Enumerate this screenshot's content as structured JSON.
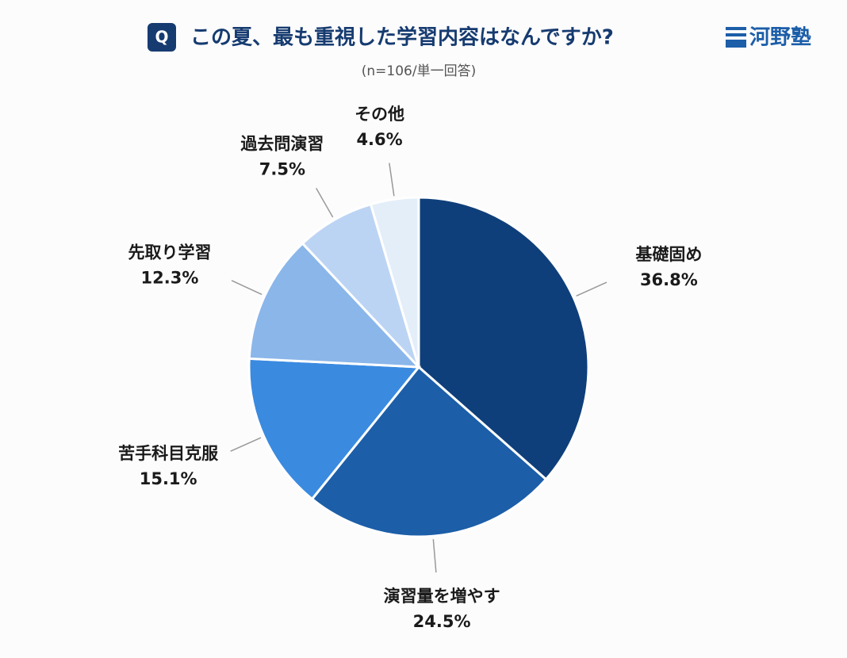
{
  "header": {
    "badge": "Q",
    "title": "この夏、最も重視した学習内容はなんですか?",
    "logo": "河野塾"
  },
  "chart_data": {
    "type": "pie",
    "subtitle": "(n=106/単一回答)",
    "categories": [
      "基礎固め",
      "演習量を増やす",
      "苦手科目克服",
      "先取り学習",
      "過去問演習",
      "その他"
    ],
    "values": [
      36.8,
      24.5,
      15.1,
      12.3,
      7.5,
      4.6
    ],
    "value_labels": [
      "36.8%",
      "24.5%",
      "15.1%",
      "12.3%",
      "7.5%",
      "4.6%"
    ],
    "colors": [
      "#0f3f7a",
      "#1c5ea8",
      "#3a8ae0",
      "#8ab6ea",
      "#bcd4f4",
      "#e4eef9"
    ]
  }
}
